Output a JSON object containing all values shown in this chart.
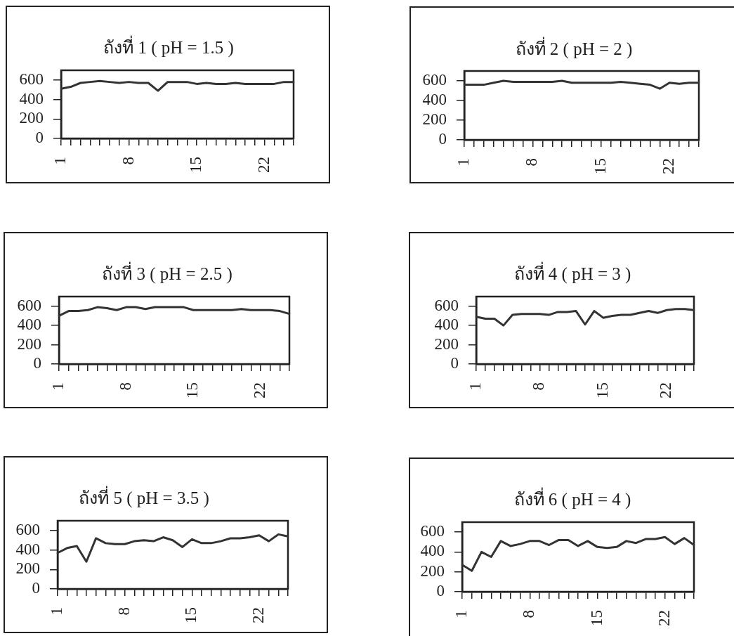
{
  "chart_data": [
    {
      "type": "line",
      "title": "ถังที่ 1 ( pH = 1.5 )",
      "categories": [
        "1",
        null,
        null,
        null,
        null,
        null,
        null,
        "8",
        null,
        null,
        null,
        null,
        null,
        null,
        "15",
        null,
        null,
        null,
        null,
        null,
        null,
        "22",
        null,
        null,
        null
      ],
      "values": [
        510,
        530,
        570,
        580,
        590,
        580,
        570,
        580,
        570,
        570,
        490,
        580,
        580,
        580,
        560,
        570,
        560,
        560,
        570,
        560,
        560,
        560,
        560,
        580,
        580
      ],
      "color": "#333333",
      "ylim": [
        0,
        700
      ],
      "yticks": [
        0,
        200,
        400,
        600
      ]
    },
    {
      "type": "line",
      "title": "ถังที่ 2 ( pH = 2 )",
      "categories": [
        "1",
        null,
        null,
        null,
        null,
        null,
        null,
        "8",
        null,
        null,
        null,
        null,
        null,
        null,
        "15",
        null,
        null,
        null,
        null,
        null,
        null,
        "22",
        null,
        null,
        null
      ],
      "values": [
        560,
        560,
        560,
        580,
        600,
        590,
        590,
        590,
        590,
        590,
        600,
        580,
        580,
        580,
        580,
        580,
        590,
        580,
        570,
        560,
        520,
        580,
        570,
        580,
        580
      ],
      "color": "#333333",
      "ylim": [
        0,
        700
      ],
      "yticks": [
        0,
        200,
        400,
        600
      ]
    },
    {
      "type": "line",
      "title": "ถังที่ 3 ( pH = 2.5 )",
      "categories": [
        "1",
        null,
        null,
        null,
        null,
        null,
        null,
        "8",
        null,
        null,
        null,
        null,
        null,
        null,
        "15",
        null,
        null,
        null,
        null,
        null,
        null,
        "22",
        null,
        null,
        null
      ],
      "values": [
        500,
        550,
        550,
        560,
        590,
        580,
        560,
        590,
        590,
        570,
        590,
        590,
        590,
        590,
        560,
        560,
        560,
        560,
        560,
        570,
        560,
        560,
        560,
        550,
        520
      ],
      "color": "#333333",
      "ylim": [
        0,
        700
      ],
      "yticks": [
        0,
        200,
        400,
        600
      ]
    },
    {
      "type": "line",
      "title": "ถังที่ 4 ( pH = 3 )",
      "categories": [
        "1",
        null,
        null,
        null,
        null,
        null,
        null,
        "8",
        null,
        null,
        null,
        null,
        null,
        null,
        "15",
        null,
        null,
        null,
        null,
        null,
        null,
        "22",
        null,
        null,
        null
      ],
      "values": [
        490,
        470,
        470,
        400,
        510,
        520,
        520,
        520,
        510,
        540,
        540,
        550,
        410,
        550,
        480,
        500,
        510,
        510,
        530,
        550,
        530,
        560,
        570,
        570,
        560
      ],
      "color": "#333333",
      "ylim": [
        0,
        700
      ],
      "yticks": [
        0,
        200,
        400,
        600
      ]
    },
    {
      "type": "line",
      "title": "ถังที่ 5 ( pH = 3.5 )",
      "categories": [
        "1",
        null,
        null,
        null,
        null,
        null,
        null,
        "8",
        null,
        null,
        null,
        null,
        null,
        null,
        "15",
        null,
        null,
        null,
        null,
        null,
        null,
        "22",
        null,
        null,
        null
      ],
      "values": [
        370,
        420,
        440,
        280,
        520,
        470,
        460,
        460,
        490,
        500,
        490,
        530,
        500,
        430,
        510,
        470,
        470,
        490,
        520,
        520,
        530,
        550,
        490,
        560,
        540
      ],
      "color": "#333333",
      "ylim": [
        0,
        700
      ],
      "yticks": [
        0,
        200,
        400,
        600
      ]
    },
    {
      "type": "line",
      "title": "ถังที่ 6 ( pH = 4 )",
      "categories": [
        "1",
        null,
        null,
        null,
        null,
        null,
        null,
        "8",
        null,
        null,
        null,
        null,
        null,
        null,
        "15",
        null,
        null,
        null,
        null,
        null,
        null,
        "22",
        null,
        null,
        null
      ],
      "values": [
        270,
        210,
        400,
        350,
        510,
        460,
        480,
        510,
        510,
        470,
        520,
        520,
        460,
        510,
        450,
        440,
        450,
        510,
        490,
        530,
        530,
        550,
        480,
        540,
        470
      ],
      "color": "#333333",
      "ylim": [
        0,
        700
      ],
      "yticks": [
        0,
        200,
        400,
        600
      ]
    }
  ]
}
